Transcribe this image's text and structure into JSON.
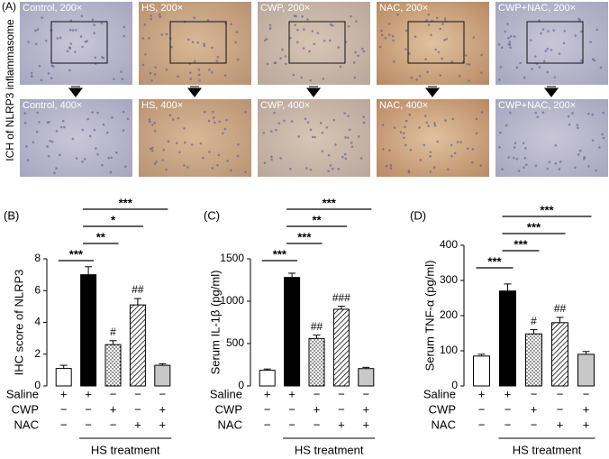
{
  "panel_a": {
    "label": "(A)",
    "side_label": "ICH of NLRP3 inflammasome",
    "top_row": [
      "Control, 200×",
      "HS, 200×",
      "CWP, 200×",
      "NAC, 200×",
      "CWP+NAC, 200×"
    ],
    "bottom_row": [
      "Control, 400×",
      "HS, 400×",
      "CWP, 400×",
      "NAC, 400×",
      "CWP+NAC, 200×"
    ]
  },
  "chart_data": [
    {
      "type": "bar",
      "panel_label": "(B)",
      "y_label": "IHC score of NLRP3",
      "categories": [
        null,
        null,
        null,
        null,
        null
      ],
      "values": [
        1.1,
        7.0,
        2.6,
        5.1,
        1.3
      ],
      "errors": [
        0.2,
        0.5,
        0.25,
        0.4,
        0.1
      ],
      "bar_styles": [
        "white",
        "black",
        "dotted",
        "hatched",
        "gray"
      ],
      "annotations": [
        null,
        null,
        "#",
        "##",
        null
      ],
      "comparisons": [
        {
          "pair": [
            0,
            1
          ],
          "label": "***"
        },
        {
          "pair": [
            1,
            2
          ],
          "label": "**"
        },
        {
          "pair": [
            1,
            3
          ],
          "label": "*"
        },
        {
          "pair": [
            1,
            4
          ],
          "label": "***"
        }
      ],
      "ylim": [
        0,
        8
      ],
      "yticks": [
        0,
        2,
        4,
        6,
        8
      ],
      "treatments": [
        {
          "name": "Saline",
          "marks": [
            "+",
            "+",
            "−",
            "−",
            "−"
          ]
        },
        {
          "name": "CWP",
          "marks": [
            "−",
            "−",
            "+",
            "−",
            "+"
          ]
        },
        {
          "name": "NAC",
          "marks": [
            "−",
            "−",
            "−",
            "+",
            "+"
          ]
        }
      ],
      "group_label": "HS treatment"
    },
    {
      "type": "bar",
      "panel_label": "(C)",
      "y_label": "Serum IL-1β (pg/ml)",
      "categories": [
        null,
        null,
        null,
        null,
        null
      ],
      "values": [
        185,
        1280,
        560,
        905,
        205
      ],
      "errors": [
        15,
        50,
        40,
        35,
        15
      ],
      "bar_styles": [
        "white",
        "black",
        "dotted",
        "hatched",
        "gray"
      ],
      "annotations": [
        null,
        null,
        "##",
        "###",
        null
      ],
      "comparisons": [
        {
          "pair": [
            0,
            1
          ],
          "label": "***"
        },
        {
          "pair": [
            1,
            2
          ],
          "label": "***"
        },
        {
          "pair": [
            1,
            3
          ],
          "label": "**"
        },
        {
          "pair": [
            1,
            4
          ],
          "label": "***"
        }
      ],
      "ylim": [
        0,
        1500
      ],
      "yticks": [
        0,
        500,
        1000,
        1500
      ],
      "treatments": [
        {
          "name": "Saline",
          "marks": [
            "+",
            "+",
            "−",
            "−",
            "−"
          ]
        },
        {
          "name": "CWP",
          "marks": [
            "−",
            "−",
            "+",
            "−",
            "+"
          ]
        },
        {
          "name": "NAC",
          "marks": [
            "−",
            "−",
            "−",
            "+",
            "+"
          ]
        }
      ],
      "group_label": "HS treatment"
    },
    {
      "type": "bar",
      "panel_label": "(D)",
      "y_label": "Serum TNF-α (pg/ml)",
      "categories": [
        null,
        null,
        null,
        null,
        null
      ],
      "values": [
        85,
        270,
        148,
        180,
        90
      ],
      "errors": [
        5,
        20,
        12,
        15,
        8
      ],
      "bar_styles": [
        "white",
        "black",
        "dotted",
        "hatched",
        "gray"
      ],
      "annotations": [
        null,
        null,
        "#",
        "##",
        null
      ],
      "comparisons": [
        {
          "pair": [
            0,
            1
          ],
          "label": "***"
        },
        {
          "pair": [
            1,
            2
          ],
          "label": "***"
        },
        {
          "pair": [
            1,
            3
          ],
          "label": "***"
        },
        {
          "pair": [
            1,
            4
          ],
          "label": "***"
        }
      ],
      "ylim": [
        0,
        400
      ],
      "yticks": [
        0,
        100,
        200,
        300,
        400
      ],
      "treatments": [
        {
          "name": "Saline",
          "marks": [
            "+",
            "+",
            "−",
            "−",
            "−"
          ]
        },
        {
          "name": "CWP",
          "marks": [
            "−",
            "−",
            "+",
            "−",
            "+"
          ]
        },
        {
          "name": "NAC",
          "marks": [
            "−",
            "−",
            "−",
            "+",
            "+"
          ]
        }
      ],
      "group_label": "HS treatment"
    }
  ]
}
